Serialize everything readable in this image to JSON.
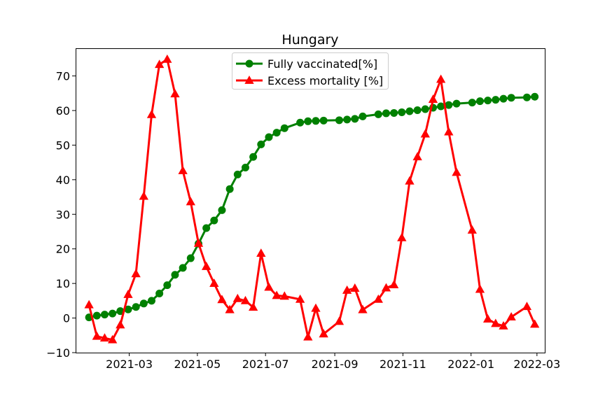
{
  "chart_data": {
    "type": "line",
    "title": "Hungary",
    "xlabel": "",
    "ylabel": "",
    "x_axis_type": "date",
    "xlim": [
      "2021-01-12",
      "2022-03-08"
    ],
    "ylim": [
      -10,
      78
    ],
    "x_ticks": [
      "2021-03-01",
      "2021-05-01",
      "2021-07-01",
      "2021-09-01",
      "2021-11-01",
      "2022-01-01",
      "2022-03-01"
    ],
    "x_tick_labels": [
      "2021-03",
      "2021-05",
      "2021-07",
      "2021-09",
      "2021-11",
      "2022-01",
      "2022-03"
    ],
    "y_ticks": [
      -10,
      0,
      10,
      20,
      30,
      40,
      50,
      60,
      70
    ],
    "y_tick_labels": [
      "−10",
      "0",
      "10",
      "20",
      "30",
      "40",
      "50",
      "60",
      "70"
    ],
    "grid": false,
    "legend_position": "top-center",
    "series": [
      {
        "name": "Fully vaccinated[%]",
        "color": "#008000",
        "marker": "circle",
        "x": [
          "2021-01-24",
          "2021-01-31",
          "2021-02-07",
          "2021-02-14",
          "2021-02-21",
          "2021-02-28",
          "2021-03-07",
          "2021-03-14",
          "2021-03-21",
          "2021-03-28",
          "2021-04-04",
          "2021-04-11",
          "2021-04-18",
          "2021-04-25",
          "2021-05-02",
          "2021-05-09",
          "2021-05-16",
          "2021-05-23",
          "2021-05-30",
          "2021-06-06",
          "2021-06-13",
          "2021-06-20",
          "2021-06-27",
          "2021-07-04",
          "2021-07-11",
          "2021-07-18",
          "2021-08-01",
          "2021-08-08",
          "2021-08-15",
          "2021-08-22",
          "2021-09-05",
          "2021-09-12",
          "2021-09-19",
          "2021-09-26",
          "2021-10-10",
          "2021-10-17",
          "2021-10-24",
          "2021-10-31",
          "2021-11-07",
          "2021-11-14",
          "2021-11-21",
          "2021-11-28",
          "2021-12-05",
          "2021-12-12",
          "2021-12-19",
          "2022-01-02",
          "2022-01-09",
          "2022-01-16",
          "2022-01-23",
          "2022-01-30",
          "2022-02-06",
          "2022-02-20",
          "2022-02-27"
        ],
        "values": [
          0.2,
          0.7,
          1.0,
          1.3,
          2.0,
          2.5,
          3.2,
          4.2,
          5.0,
          7.1,
          9.5,
          12.5,
          14.5,
          17.3,
          21.5,
          26.0,
          28.2,
          31.2,
          37.3,
          41.5,
          43.5,
          46.6,
          50.2,
          52.3,
          53.6,
          54.9,
          56.5,
          56.9,
          57.0,
          57.1,
          57.2,
          57.4,
          57.6,
          58.3,
          58.9,
          59.2,
          59.3,
          59.5,
          59.8,
          60.1,
          60.4,
          60.8,
          61.2,
          61.6,
          62.0,
          62.3,
          62.7,
          62.9,
          63.1,
          63.4,
          63.7,
          63.8,
          64.0
        ]
      },
      {
        "name": "Excess mortality [%]",
        "color": "#ff0000",
        "marker": "triangle",
        "x": [
          "2021-01-24",
          "2021-01-31",
          "2021-02-07",
          "2021-02-14",
          "2021-02-21",
          "2021-02-28",
          "2021-03-07",
          "2021-03-14",
          "2021-03-21",
          "2021-03-28",
          "2021-04-04",
          "2021-04-11",
          "2021-04-18",
          "2021-04-25",
          "2021-05-02",
          "2021-05-09",
          "2021-05-16",
          "2021-05-23",
          "2021-05-30",
          "2021-06-06",
          "2021-06-13",
          "2021-06-20",
          "2021-06-27",
          "2021-07-04",
          "2021-07-11",
          "2021-07-18",
          "2021-08-01",
          "2021-08-08",
          "2021-08-15",
          "2021-08-22",
          "2021-09-05",
          "2021-09-12",
          "2021-09-19",
          "2021-09-26",
          "2021-10-10",
          "2021-10-17",
          "2021-10-24",
          "2021-10-31",
          "2021-11-07",
          "2021-11-14",
          "2021-11-21",
          "2021-11-28",
          "2021-12-05",
          "2021-12-12",
          "2021-12-19",
          "2022-01-02",
          "2022-01-09",
          "2022-01-16",
          "2022-01-23",
          "2022-01-30",
          "2022-02-06",
          "2022-02-20",
          "2022-02-27"
        ],
        "values": [
          3.8,
          -5.3,
          -5.8,
          -6.3,
          -2.0,
          6.8,
          12.8,
          35.2,
          58.8,
          73.3,
          74.8,
          64.8,
          42.6,
          33.6,
          21.6,
          14.9,
          10.0,
          5.3,
          2.4,
          5.6,
          5.0,
          3.1,
          18.7,
          8.9,
          6.5,
          6.3,
          5.4,
          -5.5,
          2.8,
          -4.6,
          -1.0,
          8.0,
          8.6,
          2.4,
          5.4,
          8.7,
          9.6,
          23.2,
          39.6,
          46.6,
          53.2,
          63.2,
          69.0,
          53.8,
          42.1,
          25.4,
          8.3,
          -0.3,
          -1.6,
          -2.3,
          0.3,
          3.3,
          -1.8
        ]
      }
    ]
  }
}
